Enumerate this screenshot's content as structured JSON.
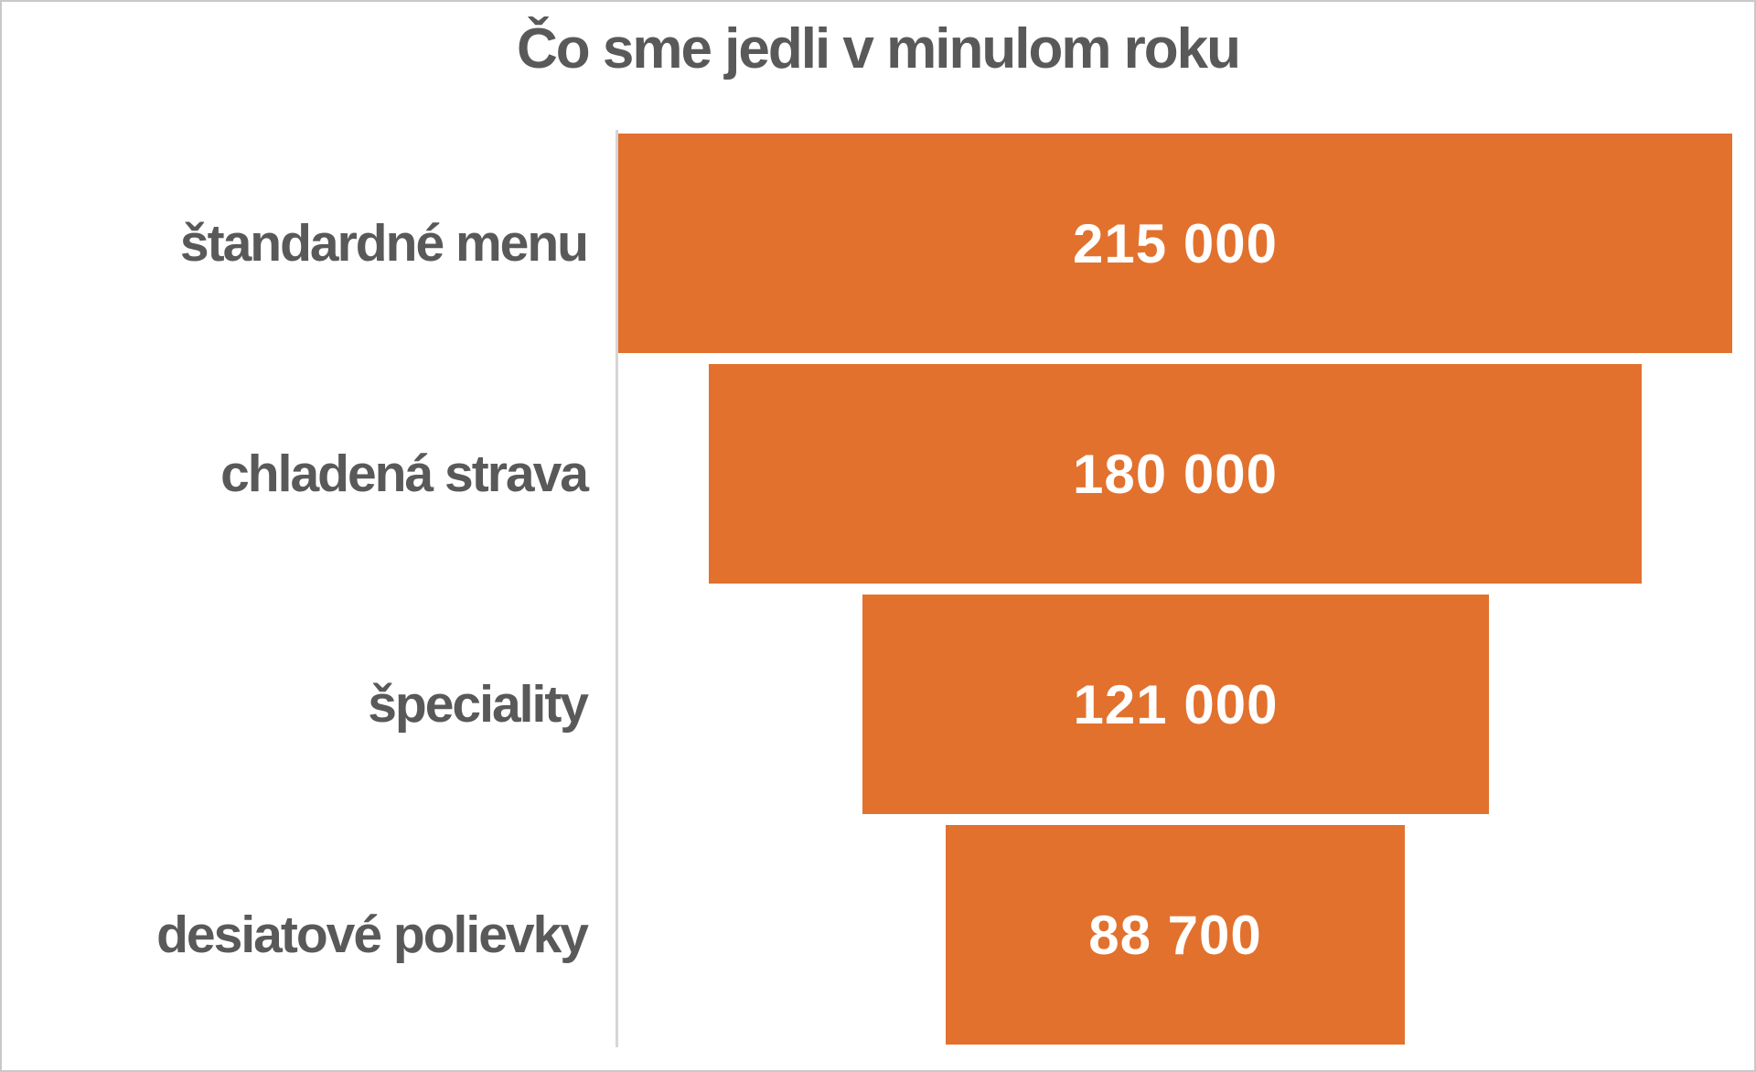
{
  "chart_data": {
    "type": "funnel",
    "title": "Čo sme jedli v minulom roku",
    "categories": [
      "štandardné menu",
      "chladená strava",
      "špeciality",
      "desiatové polievky"
    ],
    "values": [
      215000,
      180000,
      121000,
      88700
    ],
    "value_labels": [
      "215 000",
      "180 000",
      "121 000",
      "88 700"
    ],
    "max_value": 215000,
    "orientation": "horizontal-centered-funnel",
    "legend": "none",
    "grid": false,
    "colors": {
      "bar_fill": "#E2712E",
      "title_text": "#595959",
      "category_text": "#595959",
      "value_text": "#FFFFFF",
      "axis_line": "#D6D6D6",
      "frame_border": "#C9C9C9",
      "background": "#FFFFFF"
    }
  }
}
